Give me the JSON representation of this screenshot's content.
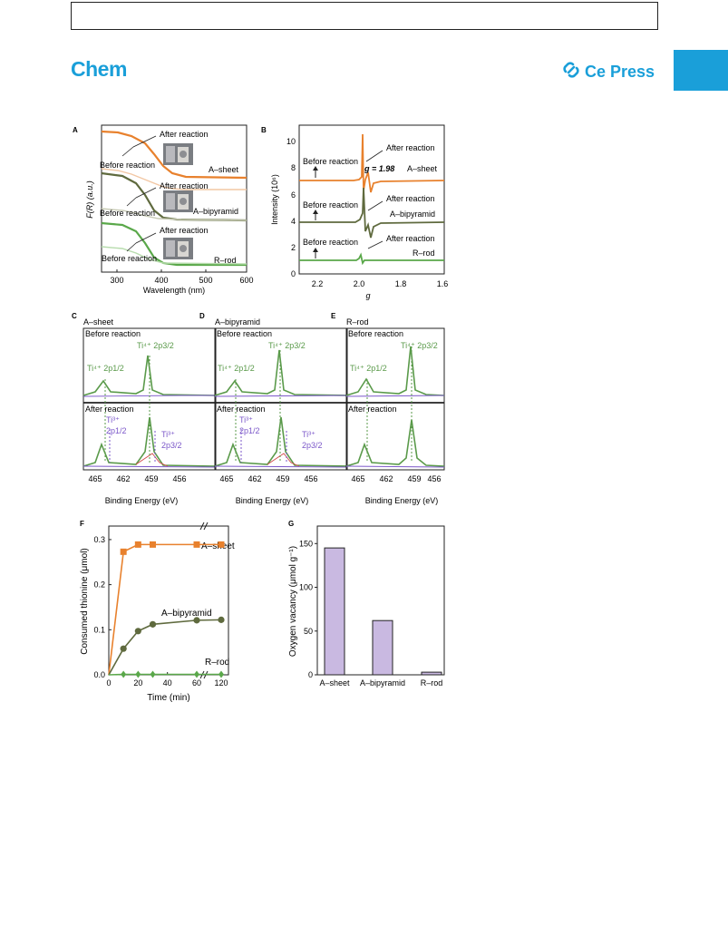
{
  "header": {
    "journal": "Chem",
    "publisher": "Ce Press"
  },
  "figure": {
    "A": {
      "letter": "A",
      "xlabel": "Wavelength (nm)",
      "ylabel": "F(R) (a.u.)",
      "xticks": [
        "300",
        "400",
        "500",
        "600"
      ],
      "samples": [
        "A–sheet",
        "A–bipyramid",
        "R–rod"
      ],
      "after": "After reaction",
      "before": "Before reaction"
    },
    "B": {
      "letter": "B",
      "xlabel": "g",
      "ylabel": "Intensity (10⁶)",
      "xticks": [
        "2.2",
        "2.0",
        "1.8",
        "1.6"
      ],
      "yticks": [
        "0",
        "2",
        "4",
        "6",
        "8",
        "10"
      ],
      "samples": [
        "A–sheet",
        "A–bipyramid",
        "R–rod"
      ],
      "gvalue": "g = 1.98",
      "after": "After reaction",
      "before": "Before reaction"
    },
    "C": {
      "letter": "C",
      "sample": "A–sheet"
    },
    "D": {
      "letter": "D",
      "sample": "A–bipyramid"
    },
    "E": {
      "letter": "E",
      "sample": "R–rod"
    },
    "xps": {
      "before": "Before reaction",
      "after": "After reaction",
      "ti4_32": "Ti⁴⁺ 2p3/2",
      "ti4_12": "Ti⁴⁺ 2p1/2",
      "ti3": "Ti³⁺",
      "p12": "2p1/2",
      "p32": "2p3/2",
      "xticks": [
        "465",
        "462",
        "459",
        "456"
      ],
      "xlabel": "Binding Energy (eV)"
    },
    "F": {
      "letter": "F",
      "xlabel": "Time (min)",
      "ylabel": "Consumed thionine (μmol)",
      "xticks": [
        "0",
        "20",
        "40",
        "60",
        "120"
      ],
      "yticks": [
        "0.0",
        "0.1",
        "0.2",
        "0.3"
      ],
      "labels": [
        "A–sheet",
        "A–bipyramid",
        "R–rod"
      ]
    },
    "G": {
      "letter": "G",
      "ylabel": "Oxygen vacancy (μmol g⁻¹)",
      "yticks": [
        "0",
        "50",
        "100",
        "150"
      ]
    }
  },
  "chart_data": [
    {
      "type": "line",
      "panel": "F",
      "x": [
        0,
        10,
        20,
        30,
        60,
        120
      ],
      "xlabel": "Time (min)",
      "ylabel": "Consumed thionine (μmol)",
      "ylim": [
        0,
        0.33
      ],
      "axis_break": "60-120",
      "series": [
        {
          "name": "A–sheet",
          "color": "#e8812d",
          "values": [
            0,
            0.273,
            0.289,
            0.289,
            0.289,
            0.289
          ]
        },
        {
          "name": "A–bipyramid",
          "color": "#5f6a3e",
          "values": [
            0,
            0.058,
            0.097,
            0.112,
            0.121,
            0.122
          ]
        },
        {
          "name": "R–rod",
          "color": "#5aa84a",
          "values": [
            0,
            0.001,
            0.001,
            0.001,
            0.001,
            0.001
          ]
        }
      ]
    },
    {
      "type": "bar",
      "panel": "G",
      "categories": [
        "A–sheet",
        "A–bipyramid",
        "R–rod"
      ],
      "values": [
        145,
        62,
        3
      ],
      "ylabel": "Oxygen vacancy (μmol g⁻¹)",
      "ylim": [
        0,
        170
      ],
      "color": "#c9b9e1"
    }
  ]
}
